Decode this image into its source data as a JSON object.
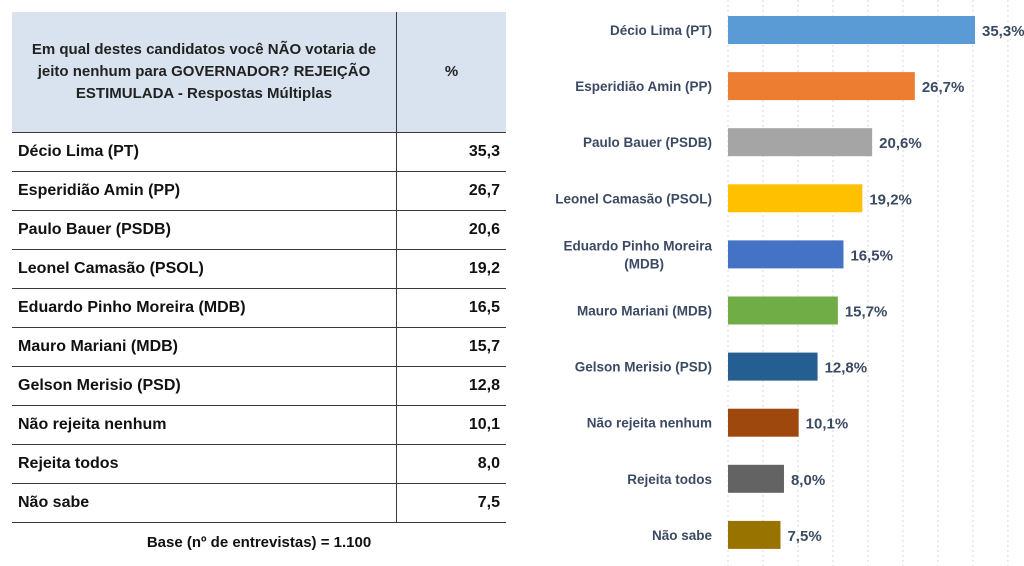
{
  "table": {
    "question": "Em qual destes candidatos você NÃO votaria de jeito nenhum para GOVERNADOR? REJEIÇÃO ESTIMULADA - Respostas Múltiplas",
    "pct_header": "%",
    "rows": [
      {
        "name": "Décio Lima (PT)",
        "value": "35,3"
      },
      {
        "name": "Esperidião Amin (PP)",
        "value": "26,7"
      },
      {
        "name": "Paulo Bauer (PSDB)",
        "value": "20,6"
      },
      {
        "name": "Leonel Camasão (PSOL)",
        "value": "19,2"
      },
      {
        "name": "Eduardo Pinho Moreira (MDB)",
        "value": "16,5"
      },
      {
        "name": "Mauro Mariani (MDB)",
        "value": "15,7"
      },
      {
        "name": "Gelson Merisio (PSD)",
        "value": "12,8"
      },
      {
        "name": "Não rejeita nenhum",
        "value": "10,1"
      },
      {
        "name": "Rejeita todos",
        "value": "8,0"
      },
      {
        "name": "Não sabe",
        "value": "7,5"
      }
    ],
    "base_note": "Base (nº de entrevistas) = 1.100"
  },
  "chart_data": {
    "type": "bar",
    "orientation": "horizontal",
    "categories": [
      [
        "Décio Lima (PT)"
      ],
      [
        "Esperidião Amin (PP)"
      ],
      [
        "Paulo Bauer (PSDB)"
      ],
      [
        "Leonel Camasão (PSOL)"
      ],
      [
        "Eduardo Pinho Moreira",
        "(MDB)"
      ],
      [
        "Mauro Mariani (MDB)"
      ],
      [
        "Gelson Merisio (PSD)"
      ],
      [
        "Não rejeita nenhum"
      ],
      [
        "Rejeita todos"
      ],
      [
        "Não sabe"
      ]
    ],
    "values": [
      35.3,
      26.7,
      20.6,
      19.2,
      16.5,
      15.7,
      12.8,
      10.1,
      8.0,
      7.5
    ],
    "value_labels": [
      "35,3%",
      "26,7%",
      "20,6%",
      "19,2%",
      "16,5%",
      "15,7%",
      "12,8%",
      "10,1%",
      "8,0%",
      "7,5%"
    ],
    "colors": [
      "#5b9bd5",
      "#ed7d31",
      "#a5a5a5",
      "#ffc000",
      "#4472c4",
      "#70ad47",
      "#255e91",
      "#9e480e",
      "#636363",
      "#997300"
    ],
    "xlim": [
      0,
      40
    ],
    "grid": true,
    "legend": "none",
    "title": "",
    "xlabel": "",
    "ylabel": ""
  }
}
